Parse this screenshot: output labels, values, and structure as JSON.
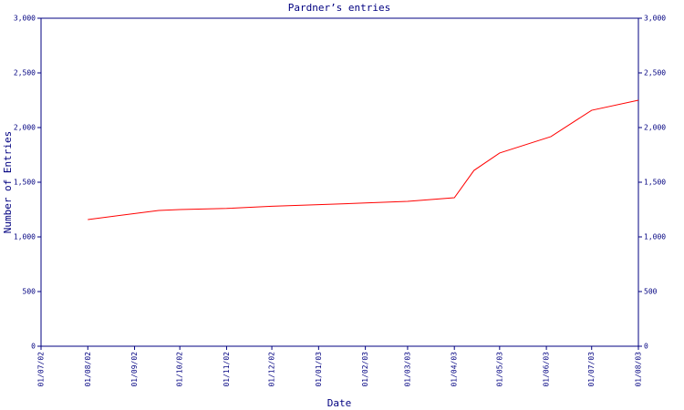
{
  "chart_data": {
    "type": "line",
    "title": "Pardner’s entries",
    "xlabel": "Date",
    "ylabel": "Number of Entries",
    "x": [
      "01/08/02",
      "17/09/02",
      "01/10/02",
      "01/11/02",
      "01/12/02",
      "01/01/03",
      "01/02/03",
      "01/03/03",
      "01/04/03",
      "14/04/03",
      "01/05/03",
      "04/06/03",
      "01/07/03",
      "01/08/03"
    ],
    "values": [
      1158,
      1242,
      1250,
      1260,
      1280,
      1295,
      1310,
      1325,
      1358,
      1608,
      1767,
      1917,
      2158,
      2250
    ],
    "color": "#ff0000",
    "axis_color": "#000080",
    "xlim": [
      "01/07/02",
      "01/08/03"
    ],
    "xticks": [
      "01/07/02",
      "01/08/02",
      "01/09/02",
      "01/10/02",
      "01/11/02",
      "01/12/02",
      "01/01/03",
      "01/02/03",
      "01/03/03",
      "01/04/03",
      "01/05/03",
      "01/06/03",
      "01/07/03",
      "01/08/03"
    ],
    "ylim": [
      0,
      3000
    ],
    "yticks": [
      0,
      500,
      {
        "value": 1000,
        "label": "1,000"
      },
      {
        "value": 1500,
        "label": "1,500"
      },
      {
        "value": 2000,
        "label": "2,000"
      },
      {
        "value": 2500,
        "label": "2,500"
      },
      {
        "value": 3000,
        "label": "3,000"
      }
    ],
    "y2lim": [
      0,
      3000
    ],
    "y2ticks": [
      0,
      500,
      {
        "value": 1000,
        "label": "1,000"
      },
      {
        "value": 1500,
        "label": "1,500"
      },
      {
        "value": 2000,
        "label": "2,000"
      },
      {
        "value": 2500,
        "label": "2,500"
      },
      {
        "value": 3000,
        "label": "3,000"
      }
    ]
  }
}
